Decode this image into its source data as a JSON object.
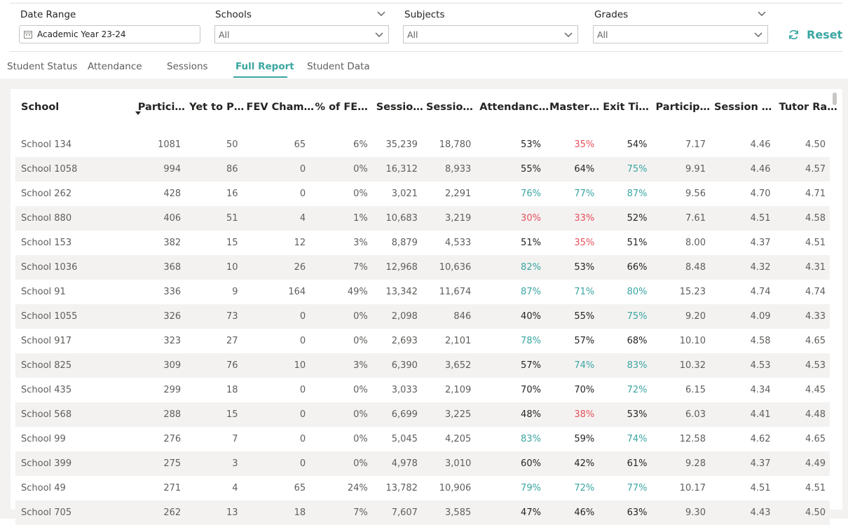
{
  "filters": {
    "date_range": {
      "label": "Date Range",
      "value": "Academic Year 23-24"
    },
    "schools": {
      "label": "Schools",
      "value": "All"
    },
    "subjects": {
      "label": "Subjects",
      "value": "All"
    },
    "grades": {
      "label": "Grades",
      "value": "All"
    },
    "reset_label": "Reset"
  },
  "tabs": [
    {
      "label": "Student Status",
      "active": false
    },
    {
      "label": "Attendance",
      "active": false
    },
    {
      "label": "Sessions",
      "active": false
    },
    {
      "label": "Full Report",
      "active": true
    },
    {
      "label": "Student Data",
      "active": false
    }
  ],
  "colors": {
    "accent": "#3aa6a2",
    "negative": "#e8505b",
    "positive": "#3aa6a2"
  },
  "table": {
    "columns": [
      "School",
      "Partici…",
      "Yet to P…",
      "FEV Cham…",
      "% of FE…",
      "Sessio…",
      "Sessio…",
      "Attendanc…",
      "Master…",
      "Exit Ti…",
      "Particip…",
      "Session …",
      "Tutor Ra…"
    ],
    "sorted_column": "Partici…",
    "rows": [
      {
        "cells": [
          "School 134",
          "1081",
          "50",
          "65",
          "6%",
          "35,239",
          "18,780",
          "53%",
          "35%",
          "54%",
          "7.17",
          "4.46",
          "4.50"
        ],
        "status": [
          "",
          "",
          "",
          "",
          "",
          "",
          "",
          "black",
          "red",
          "black",
          "",
          "",
          ""
        ]
      },
      {
        "cells": [
          "School 1058",
          "994",
          "86",
          "0",
          "0%",
          "16,312",
          "8,933",
          "55%",
          "64%",
          "75%",
          "9.91",
          "4.46",
          "4.57"
        ],
        "status": [
          "",
          "",
          "",
          "",
          "",
          "",
          "",
          "black",
          "black",
          "green",
          "",
          "",
          ""
        ]
      },
      {
        "cells": [
          "School 262",
          "428",
          "16",
          "0",
          "0%",
          "3,021",
          "2,291",
          "76%",
          "77%",
          "87%",
          "9.56",
          "4.70",
          "4.71"
        ],
        "status": [
          "",
          "",
          "",
          "",
          "",
          "",
          "",
          "green",
          "green",
          "green",
          "",
          "",
          ""
        ]
      },
      {
        "cells": [
          "School 880",
          "406",
          "51",
          "4",
          "1%",
          "10,683",
          "3,219",
          "30%",
          "33%",
          "52%",
          "7.61",
          "4.51",
          "4.58"
        ],
        "status": [
          "",
          "",
          "",
          "",
          "",
          "",
          "",
          "red",
          "red",
          "black",
          "",
          "",
          ""
        ]
      },
      {
        "cells": [
          "School 153",
          "382",
          "15",
          "12",
          "3%",
          "8,879",
          "4,533",
          "51%",
          "35%",
          "51%",
          "8.00",
          "4.37",
          "4.51"
        ],
        "status": [
          "",
          "",
          "",
          "",
          "",
          "",
          "",
          "black",
          "red",
          "black",
          "",
          "",
          ""
        ]
      },
      {
        "cells": [
          "School 1036",
          "368",
          "10",
          "26",
          "7%",
          "12,968",
          "10,636",
          "82%",
          "53%",
          "66%",
          "8.48",
          "4.32",
          "4.31"
        ],
        "status": [
          "",
          "",
          "",
          "",
          "",
          "",
          "",
          "green",
          "black",
          "black",
          "",
          "",
          ""
        ]
      },
      {
        "cells": [
          "School 91",
          "336",
          "9",
          "164",
          "49%",
          "13,342",
          "11,674",
          "87%",
          "71%",
          "80%",
          "15.23",
          "4.74",
          "4.74"
        ],
        "status": [
          "",
          "",
          "",
          "",
          "",
          "",
          "",
          "green",
          "green",
          "green",
          "",
          "",
          ""
        ]
      },
      {
        "cells": [
          "School 1055",
          "326",
          "73",
          "0",
          "0%",
          "2,098",
          "846",
          "40%",
          "55%",
          "75%",
          "9.20",
          "4.09",
          "4.33"
        ],
        "status": [
          "",
          "",
          "",
          "",
          "",
          "",
          "",
          "black",
          "black",
          "green",
          "",
          "",
          ""
        ]
      },
      {
        "cells": [
          "School 917",
          "323",
          "27",
          "0",
          "0%",
          "2,693",
          "2,101",
          "78%",
          "57%",
          "68%",
          "10.10",
          "4.58",
          "4.65"
        ],
        "status": [
          "",
          "",
          "",
          "",
          "",
          "",
          "",
          "green",
          "black",
          "black",
          "",
          "",
          ""
        ]
      },
      {
        "cells": [
          "School 825",
          "309",
          "76",
          "10",
          "3%",
          "6,390",
          "3,652",
          "57%",
          "74%",
          "83%",
          "10.32",
          "4.53",
          "4.53"
        ],
        "status": [
          "",
          "",
          "",
          "",
          "",
          "",
          "",
          "black",
          "green",
          "green",
          "",
          "",
          ""
        ]
      },
      {
        "cells": [
          "School 435",
          "299",
          "18",
          "0",
          "0%",
          "3,033",
          "2,109",
          "70%",
          "70%",
          "72%",
          "6.15",
          "4.34",
          "4.45"
        ],
        "status": [
          "",
          "",
          "",
          "",
          "",
          "",
          "",
          "black",
          "black",
          "green",
          "",
          "",
          ""
        ]
      },
      {
        "cells": [
          "School 568",
          "288",
          "15",
          "0",
          "0%",
          "6,699",
          "3,225",
          "48%",
          "38%",
          "53%",
          "6.03",
          "4.41",
          "4.48"
        ],
        "status": [
          "",
          "",
          "",
          "",
          "",
          "",
          "",
          "black",
          "red",
          "black",
          "",
          "",
          ""
        ]
      },
      {
        "cells": [
          "School 99",
          "276",
          "7",
          "0",
          "0%",
          "5,045",
          "4,205",
          "83%",
          "59%",
          "74%",
          "12.58",
          "4.62",
          "4.65"
        ],
        "status": [
          "",
          "",
          "",
          "",
          "",
          "",
          "",
          "green",
          "black",
          "green",
          "",
          "",
          ""
        ]
      },
      {
        "cells": [
          "School 399",
          "275",
          "3",
          "0",
          "0%",
          "4,978",
          "3,010",
          "60%",
          "42%",
          "61%",
          "9.28",
          "4.37",
          "4.49"
        ],
        "status": [
          "",
          "",
          "",
          "",
          "",
          "",
          "",
          "black",
          "black",
          "black",
          "",
          "",
          ""
        ]
      },
      {
        "cells": [
          "School 49",
          "271",
          "4",
          "65",
          "24%",
          "13,782",
          "10,906",
          "79%",
          "72%",
          "77%",
          "10.17",
          "4.51",
          "4.51"
        ],
        "status": [
          "",
          "",
          "",
          "",
          "",
          "",
          "",
          "green",
          "green",
          "green",
          "",
          "",
          ""
        ]
      },
      {
        "cells": [
          "School 705",
          "262",
          "13",
          "18",
          "7%",
          "7,607",
          "3,585",
          "47%",
          "46%",
          "63%",
          "9.30",
          "4.43",
          "4.50"
        ],
        "status": [
          "",
          "",
          "",
          "",
          "",
          "",
          "",
          "black",
          "black",
          "black",
          "",
          "",
          ""
        ]
      }
    ]
  }
}
